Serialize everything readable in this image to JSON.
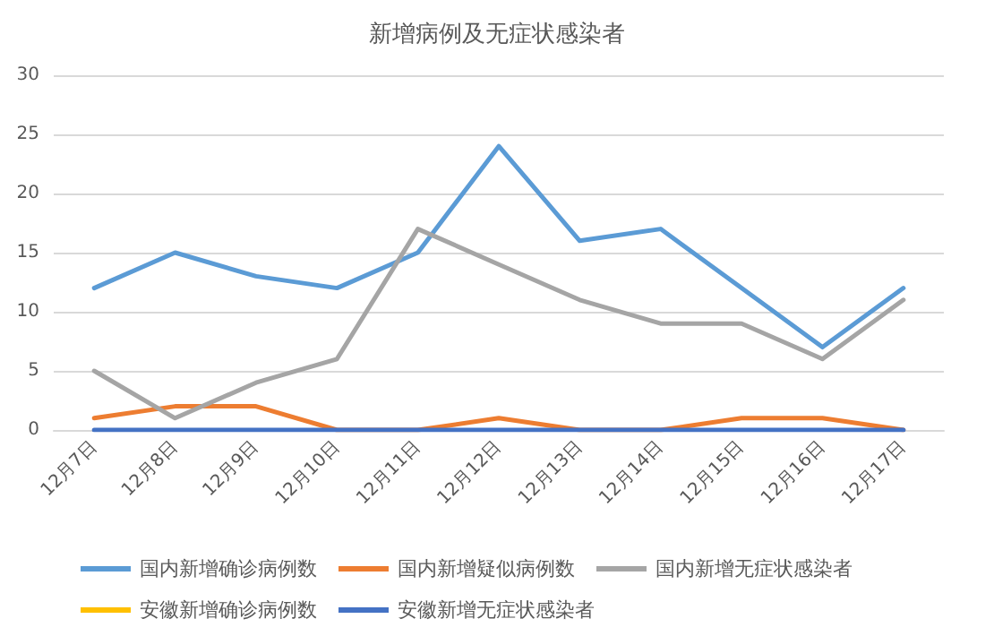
{
  "chart_data": {
    "type": "line",
    "title": "新增病例及无症状感染者",
    "categories": [
      "12月7日",
      "12月8日",
      "12月9日",
      "12月10日",
      "12月11日",
      "12月12日",
      "12月13日",
      "12月14日",
      "12月15日",
      "12月16日",
      "12月17日"
    ],
    "series": [
      {
        "name": "国内新增确诊病例数",
        "color": "#5b9bd5",
        "values": [
          12,
          15,
          13,
          12,
          15,
          24,
          16,
          17,
          12,
          7,
          12
        ]
      },
      {
        "name": "国内新增疑似病例数",
        "color": "#ed7d31",
        "values": [
          1,
          2,
          2,
          0,
          0,
          1,
          0,
          0,
          1,
          1,
          0
        ]
      },
      {
        "name": "国内新增无症状感染者",
        "color": "#a5a5a5",
        "values": [
          5,
          1,
          4,
          6,
          17,
          14,
          11,
          9,
          9,
          6,
          11
        ]
      },
      {
        "name": "安徽新增确诊病例数",
        "color": "#ffc000",
        "values": [
          null,
          null,
          null,
          null,
          null,
          null,
          null,
          null,
          null,
          null,
          null
        ]
      },
      {
        "name": "安徽新增无症状感染者",
        "color": "#4472c4",
        "values": [
          0,
          0,
          0,
          0,
          0,
          0,
          0,
          0,
          0,
          0,
          0
        ]
      }
    ],
    "ylim": [
      0,
      30
    ],
    "yticks": [
      0,
      5,
      10,
      15,
      20,
      25,
      30
    ],
    "grid": "y",
    "legend": "bottom",
    "marker": "none",
    "line_style": "solid"
  }
}
